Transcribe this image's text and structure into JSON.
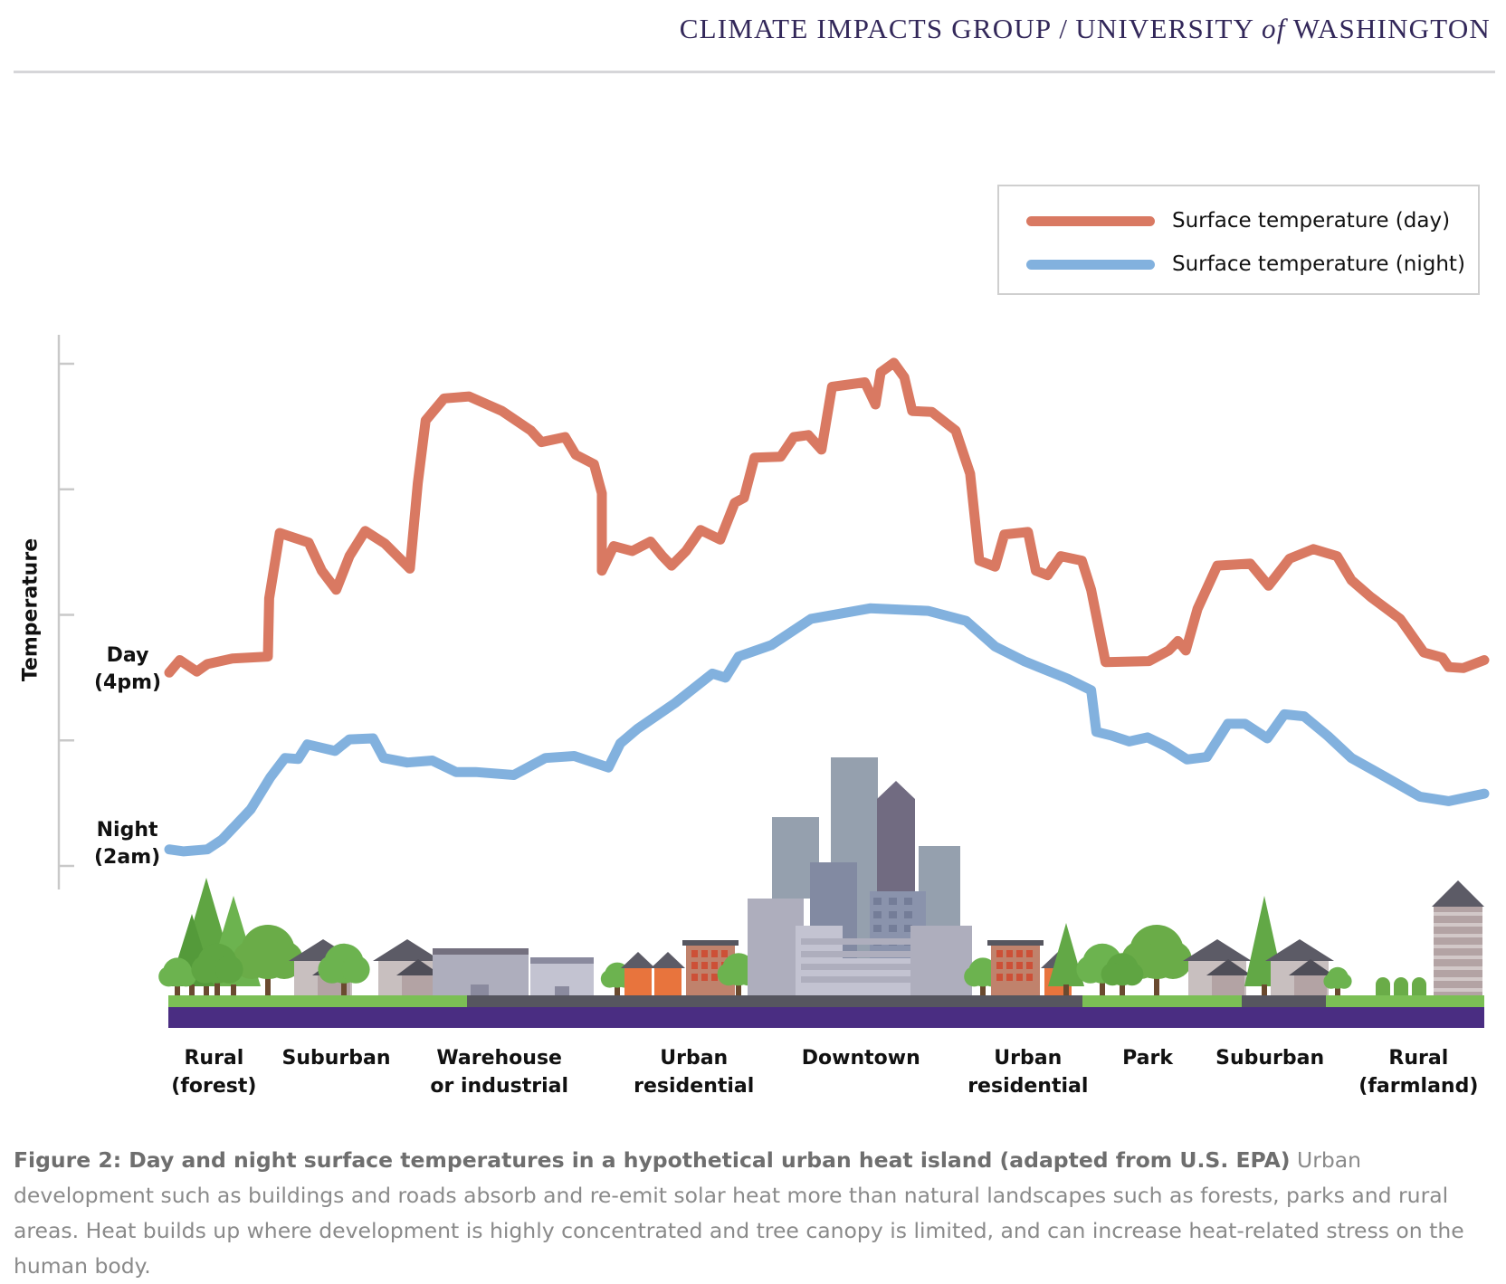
{
  "header": {
    "org": "CLIMATE IMPACTS GROUP",
    "separator": "/",
    "univ_pre": "UNIVERSITY",
    "univ_of": "of",
    "univ_post": "WASHINGTON"
  },
  "colors": {
    "day": "#d97962",
    "night": "#82b1de",
    "brand": "#33285a",
    "ground_purple": "#4a2d82",
    "road": "#56565f",
    "grass": "#7bbf55"
  },
  "chart_data": {
    "type": "line",
    "title": "",
    "xlabel": "",
    "ylabel": "Temperature",
    "y_ticks_count": 5,
    "ylim": [
      0,
      100
    ],
    "xlim": [
      0,
      100
    ],
    "grid": false,
    "legend_position": "top-right",
    "legend": [
      "Surface temperature (day)",
      "Surface temperature (night)"
    ],
    "series_labels": {
      "day": [
        "Day",
        "(4pm)"
      ],
      "night": [
        "Night",
        "(2am)"
      ]
    },
    "categories": [
      {
        "line1": "Rural",
        "line2": "(forest)",
        "x": 3.4
      },
      {
        "line1": "Suburban",
        "line2": "",
        "x": 12.7
      },
      {
        "line1": "Warehouse",
        "line2": "or industrial",
        "x": 25.1
      },
      {
        "line1": "Urban",
        "line2": "residential",
        "x": 39.9
      },
      {
        "line1": "Downtown",
        "line2": "",
        "x": 52.6
      },
      {
        "line1": "Urban",
        "line2": "residential",
        "x": 65.3
      },
      {
        "line1": "Park",
        "line2": "",
        "x": 74.4
      },
      {
        "line1": "Suburban",
        "line2": "",
        "x": 83.7
      },
      {
        "line1": "Rural",
        "line2": "(farmland)",
        "x": 95.0
      }
    ],
    "series": [
      {
        "name": "Surface temperature (day)",
        "key": "day",
        "points": [
          [
            0,
            38.5
          ],
          [
            0.8,
            41
          ],
          [
            2.1,
            38.7
          ],
          [
            2.9,
            40.2
          ],
          [
            4.8,
            41.3
          ],
          [
            7.5,
            41.7
          ],
          [
            7.6,
            53.3
          ],
          [
            8.4,
            66.3
          ],
          [
            10.6,
            64.4
          ],
          [
            11.6,
            58.8
          ],
          [
            12.7,
            55
          ],
          [
            13.7,
            61.7
          ],
          [
            14.9,
            66.7
          ],
          [
            16.4,
            64.2
          ],
          [
            18.3,
            59.2
          ],
          [
            18.9,
            76.2
          ],
          [
            19.5,
            88.7
          ],
          [
            20.9,
            93.1
          ],
          [
            22.8,
            93.5
          ],
          [
            25.3,
            90.6
          ],
          [
            27.5,
            86.7
          ],
          [
            28.3,
            84.4
          ],
          [
            30.1,
            85.4
          ],
          [
            30.9,
            81.9
          ],
          [
            32.3,
            80
          ],
          [
            32.9,
            74.2
          ],
          [
            32.9,
            58.8
          ],
          [
            33.8,
            63.7
          ],
          [
            35.2,
            62.7
          ],
          [
            36.6,
            64.6
          ],
          [
            37.5,
            61.7
          ],
          [
            38.2,
            59.8
          ],
          [
            39.3,
            62.7
          ],
          [
            40.4,
            66.9
          ],
          [
            41.9,
            65
          ],
          [
            43,
            72.3
          ],
          [
            43.7,
            73.3
          ],
          [
            44.5,
            81.3
          ],
          [
            46.5,
            81.5
          ],
          [
            47.5,
            85.4
          ],
          [
            48.6,
            85.8
          ],
          [
            49.6,
            82.9
          ],
          [
            50.4,
            95.4
          ],
          [
            52.9,
            96.3
          ],
          [
            53.7,
            91.9
          ],
          [
            54.1,
            98.3
          ],
          [
            55.1,
            100.2
          ],
          [
            55.9,
            97.3
          ],
          [
            56.5,
            90.6
          ],
          [
            58,
            90.4
          ],
          [
            59.8,
            86.7
          ],
          [
            60.9,
            78.1
          ],
          [
            61.6,
            60.8
          ],
          [
            62.8,
            59.6
          ],
          [
            63.5,
            66
          ],
          [
            65.3,
            66.5
          ],
          [
            65.9,
            58.8
          ],
          [
            66.8,
            57.9
          ],
          [
            67.8,
            61.7
          ],
          [
            69.4,
            60.8
          ],
          [
            70.1,
            55
          ],
          [
            71.2,
            40.6
          ],
          [
            74.5,
            40.8
          ],
          [
            76,
            42.9
          ],
          [
            76.7,
            44.8
          ],
          [
            77.3,
            42.9
          ],
          [
            78.2,
            51.2
          ],
          [
            79.7,
            59.8
          ],
          [
            82.2,
            60.2
          ],
          [
            83.6,
            55.8
          ],
          [
            85.2,
            61.2
          ],
          [
            87,
            63.1
          ],
          [
            88.8,
            61.7
          ],
          [
            89.9,
            56.9
          ],
          [
            91.4,
            53.5
          ],
          [
            93.6,
            49.2
          ],
          [
            95.4,
            42.5
          ],
          [
            96.8,
            41.5
          ],
          [
            97.3,
            39.6
          ],
          [
            98.4,
            39.4
          ],
          [
            100,
            41
          ]
        ]
      },
      {
        "name": "Surface temperature (night)",
        "key": "night",
        "points": [
          [
            0,
            3.3
          ],
          [
            1.1,
            2.9
          ],
          [
            2.9,
            3.3
          ],
          [
            4,
            5.2
          ],
          [
            6.2,
            11.3
          ],
          [
            7.7,
            17.7
          ],
          [
            8.8,
            21.5
          ],
          [
            9.8,
            21.3
          ],
          [
            10.5,
            24.2
          ],
          [
            12.6,
            22.9
          ],
          [
            13.7,
            25.2
          ],
          [
            15.5,
            25.4
          ],
          [
            16.3,
            21.5
          ],
          [
            18.1,
            20.6
          ],
          [
            20,
            21
          ],
          [
            21.8,
            18.7
          ],
          [
            23.3,
            18.7
          ],
          [
            26.2,
            18.1
          ],
          [
            28.6,
            21.5
          ],
          [
            30.8,
            21.9
          ],
          [
            33.4,
            19.6
          ],
          [
            34.3,
            24.4
          ],
          [
            35.6,
            27.3
          ],
          [
            38.5,
            32.5
          ],
          [
            41.3,
            38.3
          ],
          [
            42.3,
            37.5
          ],
          [
            43.3,
            41.7
          ],
          [
            45.8,
            44
          ],
          [
            48.8,
            49.2
          ],
          [
            53.3,
            51.3
          ],
          [
            57.7,
            50.8
          ],
          [
            60.6,
            48.8
          ],
          [
            62.8,
            43.7
          ],
          [
            65,
            40.8
          ],
          [
            68.3,
            37.3
          ],
          [
            70.1,
            35
          ],
          [
            70.5,
            26.7
          ],
          [
            71.6,
            26
          ],
          [
            73,
            24.8
          ],
          [
            74.4,
            25.6
          ],
          [
            75.9,
            23.7
          ],
          [
            77.4,
            21.2
          ],
          [
            78.9,
            21.7
          ],
          [
            80.5,
            28.3
          ],
          [
            81.8,
            28.3
          ],
          [
            83.5,
            25.4
          ],
          [
            84.8,
            30.2
          ],
          [
            86.3,
            29.8
          ],
          [
            88.1,
            25.9
          ],
          [
            89.9,
            21.5
          ],
          [
            92.5,
            17.7
          ],
          [
            95.1,
            13.8
          ],
          [
            97.3,
            12.9
          ],
          [
            100,
            14.4
          ]
        ]
      }
    ]
  },
  "caption": {
    "bold": "Figure 2: Day and night surface temperatures in a hypothetical urban heat island (adapted from U.S. EPA)",
    "text": " Urban development such as buildings and roads absorb and re-emit solar heat more than natural landscapes such as forests, parks and rural areas. Heat builds up where development is highly concentrated and tree canopy is limited, and can increase heat-related stress on the human body."
  }
}
